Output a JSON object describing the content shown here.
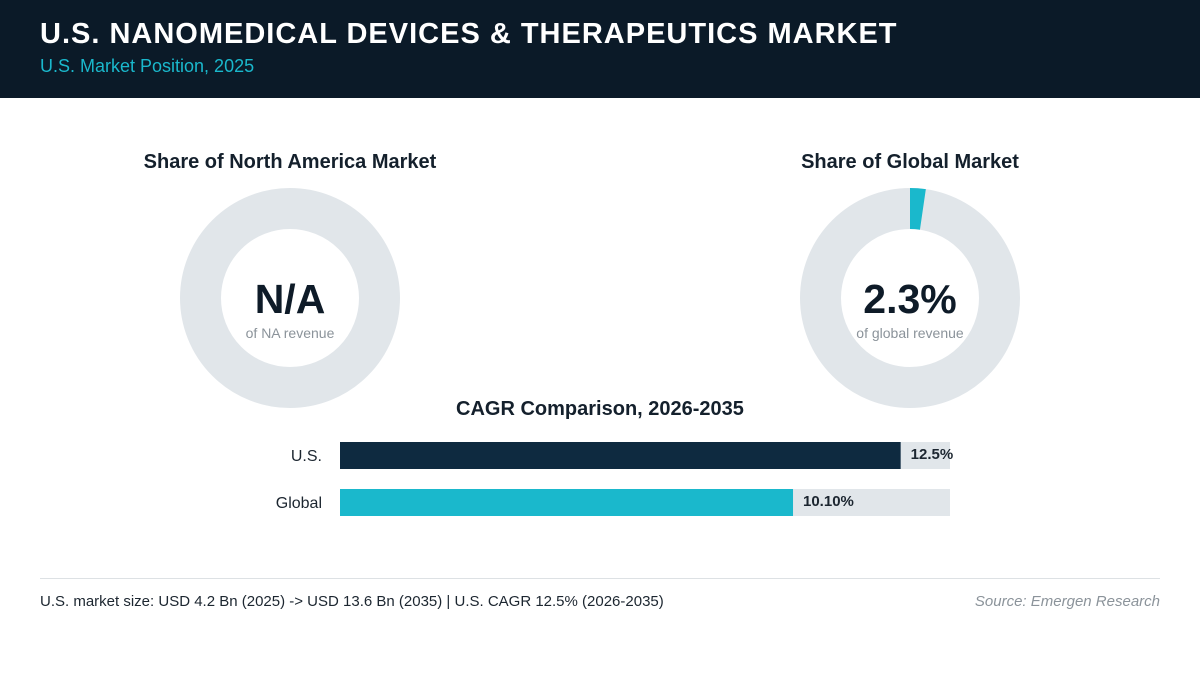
{
  "header": {
    "title": "U.S. NANOMEDICAL DEVICES & THERAPEUTICS MARKET",
    "subtitle": "U.S. Market Position, 2025"
  },
  "colors": {
    "header_bg": "#0b1a28",
    "accent": "#1ab8cc",
    "us_bar": "#0e2a40",
    "track": "#e1e6ea",
    "text_dark": "#0e1b28",
    "text_muted": "#8b939a"
  },
  "chart_data": [
    {
      "type": "pie",
      "title": "Share of North America Market",
      "value_label": "N/A",
      "caption": "of NA revenue",
      "share": null
    },
    {
      "type": "pie",
      "title": "Share of Global Market",
      "value_label": "2.3%",
      "caption": "of global revenue",
      "share": 2.3
    },
    {
      "type": "bar",
      "title": "CAGR Comparison, 2026-2035",
      "orientation": "horizontal",
      "categories": [
        "U.S.",
        "Global"
      ],
      "values": [
        12.5,
        10.1
      ],
      "value_labels": [
        "12.5%",
        "10.10%"
      ],
      "xlim": [
        0,
        13.6
      ]
    }
  ],
  "footer": {
    "note": "U.S. market size: USD 4.2 Bn (2025) -> USD 13.6 Bn (2035)  |  U.S. CAGR 12.5% (2026-2035)",
    "source": "Source: Emergen Research"
  }
}
